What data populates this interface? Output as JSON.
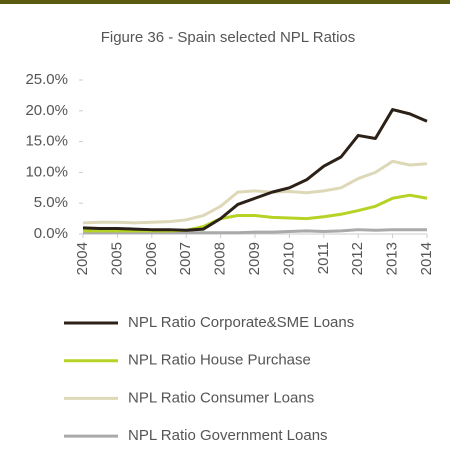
{
  "chart_data": {
    "type": "line",
    "title": "Figure 36 - Spain selected NPL Ratios",
    "x": [
      2004,
      2004.5,
      2005,
      2005.5,
      2006,
      2006.5,
      2007,
      2007.5,
      2008,
      2008.5,
      2009,
      2009.5,
      2010,
      2010.5,
      2011,
      2011.5,
      2012,
      2012.5,
      2013,
      2013.5,
      2014
    ],
    "xlim": [
      2004,
      2014
    ],
    "xticks": [
      2004,
      2005,
      2006,
      2007,
      2008,
      2009,
      2010,
      2011,
      2012,
      2013,
      2014
    ],
    "ylim": [
      0,
      25
    ],
    "yticks": [
      {
        "value": 0,
        "label": "0.0%"
      },
      {
        "value": 5,
        "label": "5.0%"
      },
      {
        "value": 10,
        "label": "10.0%"
      },
      {
        "value": 15,
        "label": "15.0%"
      },
      {
        "value": 20,
        "label": "20.0%"
      },
      {
        "value": 25,
        "label": "25.0%"
      }
    ],
    "series": [
      {
        "name": "NPL Ratio Corporate&SME Loans",
        "color": "#2b2118",
        "values": [
          1.0,
          0.9,
          0.9,
          0.8,
          0.7,
          0.7,
          0.6,
          0.8,
          2.5,
          4.8,
          5.8,
          6.8,
          7.5,
          8.8,
          11.0,
          12.5,
          16.0,
          15.5,
          20.2,
          19.5,
          18.3
        ]
      },
      {
        "name": "NPL Ratio House Purchase",
        "color": "#b5d325",
        "values": [
          0.5,
          0.5,
          0.5,
          0.5,
          0.5,
          0.5,
          0.6,
          1.2,
          2.5,
          3.0,
          3.0,
          2.7,
          2.6,
          2.5,
          2.8,
          3.2,
          3.8,
          4.5,
          5.8,
          6.3,
          5.8
        ]
      },
      {
        "name": "NPL Ratio Consumer Loans",
        "color": "#ddd8b8",
        "values": [
          1.8,
          1.9,
          1.9,
          1.8,
          1.9,
          2.0,
          2.3,
          3.0,
          4.5,
          6.8,
          7.0,
          6.8,
          6.9,
          6.7,
          7.0,
          7.5,
          9.0,
          10.0,
          11.8,
          11.2,
          11.4
        ]
      },
      {
        "name": "NPL Ratio Government Loans",
        "color": "#aaaaaa",
        "values": [
          0.2,
          0.2,
          0.2,
          0.2,
          0.2,
          0.2,
          0.2,
          0.2,
          0.2,
          0.2,
          0.3,
          0.3,
          0.4,
          0.5,
          0.4,
          0.5,
          0.7,
          0.6,
          0.7,
          0.7,
          0.7
        ]
      }
    ]
  }
}
